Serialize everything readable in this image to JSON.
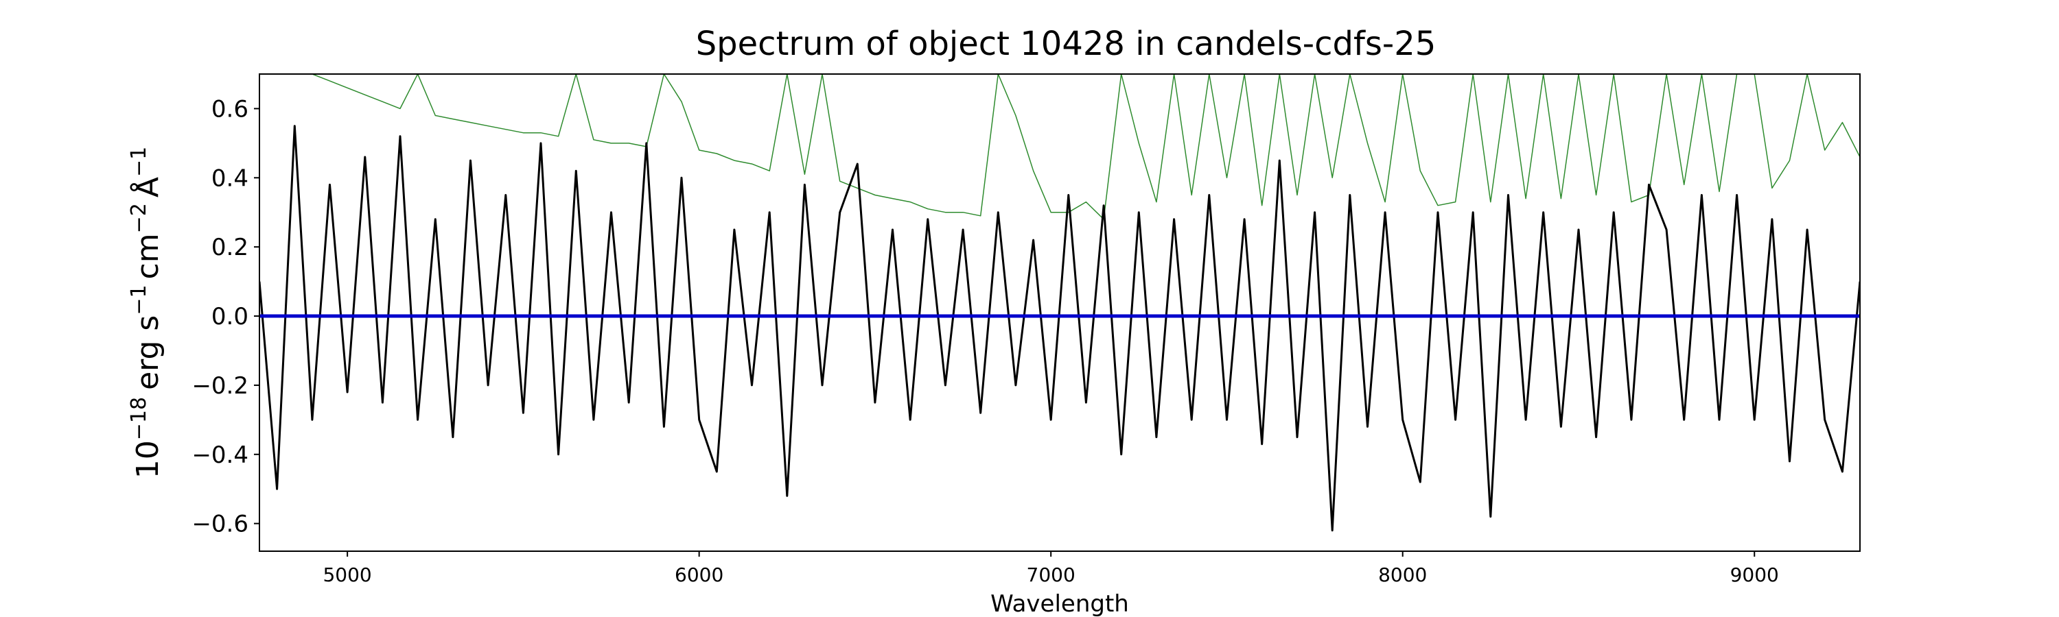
{
  "chart_data": {
    "type": "line",
    "title": "Spectrum of object 10428 in candels-cdfs-25",
    "xlabel": "Wavelength",
    "ylabel": {
      "base": "10",
      "exp": "−18",
      "unit1": "erg s",
      "exp1": "−1",
      "unit2": "cm",
      "exp2": "−2",
      "unit3": "Å",
      "exp3": "−1"
    },
    "xlim": [
      4750,
      9300
    ],
    "ylim": [
      -0.68,
      0.7
    ],
    "xticks": [
      5000,
      6000,
      7000,
      8000,
      9000
    ],
    "xtick_labels": [
      "5000",
      "6000",
      "7000",
      "8000",
      "9000"
    ],
    "yticks": [
      -0.6,
      -0.4,
      -0.2,
      0.0,
      0.2,
      0.4,
      0.6
    ],
    "ytick_labels": [
      "−0.6",
      "−0.4",
      "−0.2",
      "0.0",
      "0.2",
      "0.4",
      "0.6"
    ],
    "grid": false,
    "series": [
      {
        "role": "flux",
        "color": "#000000",
        "x": [
          4750,
          4800,
          4850,
          4900,
          4950,
          5000,
          5050,
          5100,
          5150,
          5200,
          5250,
          5300,
          5350,
          5400,
          5450,
          5500,
          5550,
          5600,
          5650,
          5700,
          5750,
          5800,
          5850,
          5900,
          5950,
          6000,
          6050,
          6100,
          6150,
          6200,
          6250,
          6300,
          6350,
          6400,
          6450,
          6500,
          6550,
          6600,
          6650,
          6700,
          6750,
          6800,
          6850,
          6900,
          6950,
          7000,
          7050,
          7100,
          7150,
          7200,
          7250,
          7300,
          7350,
          7400,
          7450,
          7500,
          7550,
          7600,
          7650,
          7700,
          7750,
          7800,
          7850,
          7900,
          7950,
          8000,
          8050,
          8100,
          8150,
          8200,
          8250,
          8300,
          8350,
          8400,
          8450,
          8500,
          8550,
          8600,
          8650,
          8700,
          8750,
          8800,
          8850,
          8900,
          8950,
          9000,
          9050,
          9100,
          9150,
          9200,
          9250,
          9300
        ],
        "y": [
          0.1,
          -0.5,
          0.55,
          -0.3,
          0.38,
          -0.22,
          0.46,
          -0.25,
          0.52,
          -0.3,
          0.28,
          -0.35,
          0.45,
          -0.2,
          0.35,
          -0.28,
          0.5,
          -0.4,
          0.42,
          -0.3,
          0.3,
          -0.25,
          0.5,
          -0.32,
          0.4,
          -0.3,
          -0.45,
          0.25,
          -0.2,
          0.3,
          -0.52,
          0.38,
          -0.2,
          0.3,
          0.44,
          -0.25,
          0.25,
          -0.3,
          0.28,
          -0.2,
          0.25,
          -0.28,
          0.3,
          -0.2,
          0.22,
          -0.3,
          0.35,
          -0.25,
          0.32,
          -0.4,
          0.3,
          -0.35,
          0.28,
          -0.3,
          0.35,
          -0.3,
          0.28,
          -0.37,
          0.45,
          -0.35,
          0.3,
          -0.62,
          0.35,
          -0.32,
          0.3,
          -0.3,
          -0.48,
          0.3,
          -0.3,
          0.3,
          -0.58,
          0.35,
          -0.3,
          0.3,
          -0.32,
          0.25,
          -0.35,
          0.3,
          -0.3,
          0.38,
          0.25,
          -0.3,
          0.35,
          -0.3,
          0.35,
          -0.3,
          0.28,
          -0.42,
          0.25,
          -0.3,
          -0.45,
          0.1
        ]
      },
      {
        "role": "error",
        "color": "#2e8b2e",
        "x": [
          4750,
          4800,
          4850,
          4900,
          4950,
          5000,
          5050,
          5100,
          5150,
          5200,
          5250,
          5300,
          5350,
          5400,
          5450,
          5500,
          5550,
          5600,
          5650,
          5700,
          5750,
          5800,
          5850,
          5900,
          5950,
          6000,
          6050,
          6100,
          6150,
          6200,
          6250,
          6300,
          6350,
          6400,
          6450,
          6500,
          6550,
          6600,
          6650,
          6700,
          6750,
          6800,
          6850,
          6900,
          6950,
          7000,
          7050,
          7100,
          7150,
          7200,
          7250,
          7300,
          7350,
          7400,
          7450,
          7500,
          7550,
          7600,
          7650,
          7700,
          7750,
          7800,
          7850,
          7900,
          7950,
          8000,
          8050,
          8100,
          8150,
          8200,
          8250,
          8300,
          8350,
          8400,
          8450,
          8500,
          8550,
          8600,
          8650,
          8700,
          8750,
          8800,
          8850,
          8900,
          8950,
          9000,
          9050,
          9100,
          9150,
          9200,
          9250,
          9300
        ],
        "y": [
          0.7,
          0.7,
          0.7,
          0.7,
          0.68,
          0.66,
          0.64,
          0.62,
          0.6,
          0.7,
          0.58,
          0.57,
          0.56,
          0.55,
          0.54,
          0.53,
          0.53,
          0.52,
          0.7,
          0.51,
          0.5,
          0.5,
          0.49,
          0.7,
          0.62,
          0.48,
          0.47,
          0.45,
          0.44,
          0.42,
          0.7,
          0.41,
          0.7,
          0.39,
          0.37,
          0.35,
          0.34,
          0.33,
          0.31,
          0.3,
          0.3,
          0.29,
          0.7,
          0.58,
          0.42,
          0.3,
          0.3,
          0.33,
          0.28,
          0.7,
          0.5,
          0.33,
          0.7,
          0.35,
          0.7,
          0.4,
          0.7,
          0.32,
          0.7,
          0.35,
          0.7,
          0.4,
          0.7,
          0.5,
          0.33,
          0.7,
          0.42,
          0.32,
          0.33,
          0.7,
          0.33,
          0.7,
          0.34,
          0.7,
          0.34,
          0.7,
          0.35,
          0.7,
          0.33,
          0.35,
          0.7,
          0.38,
          0.7,
          0.36,
          0.7,
          0.7,
          0.37,
          0.45,
          0.7,
          0.48,
          0.56,
          0.46
        ]
      },
      {
        "role": "model",
        "color": "#0000cc",
        "x": [
          4750,
          9300
        ],
        "y": [
          0.0,
          0.0
        ]
      }
    ]
  }
}
